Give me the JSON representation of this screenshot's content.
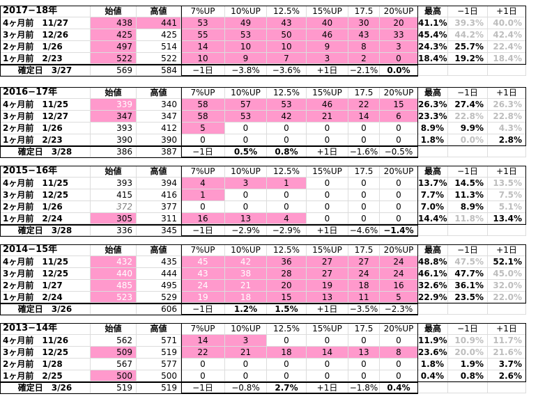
{
  "columns": [
    "始値",
    "高値",
    "7%UP",
    "10%UP",
    "12.5%",
    "15%UP",
    "17.5",
    "20%UP",
    "最高",
    "−1日",
    "+1日"
  ],
  "colors": {
    "highlight": "#ff99cc",
    "muted_text": "#bdbdbd",
    "grid": "#dcdcdc"
  },
  "sections": [
    {
      "title": "2017−18年",
      "rows": [
        {
          "label": "4ヶ月前　11/27",
          "cells": [
            "438",
            "441",
            "53",
            "49",
            "43",
            "40",
            "30",
            "20",
            "41.1%",
            "39.3%",
            "40.0%"
          ]
        },
        {
          "label": "3ヶ月前　12/26",
          "cells": [
            "425",
            "425",
            "55",
            "53",
            "50",
            "46",
            "43",
            "33",
            "45.4%",
            "44.2%",
            "42.4%"
          ]
        },
        {
          "label": "2ヶ月前　1/26",
          "cells": [
            "497",
            "514",
            "14",
            "10",
            "10",
            "9",
            "8",
            "3",
            "24.3%",
            "25.7%",
            "22.4%"
          ]
        },
        {
          "label": "1ヶ月前　2/23",
          "cells": [
            "522",
            "522",
            "10",
            "9",
            "7",
            "3",
            "2",
            "0",
            "18.4%",
            "19.2%",
            "18.4%"
          ]
        },
        {
          "label": "確定日　3/27",
          "cells": [
            "569",
            "584",
            "−1日",
            "−3.8%",
            "−3.6%",
            "+1日",
            "−2.1%",
            "0.0%",
            "",
            "",
            ""
          ]
        }
      ]
    },
    {
      "title": "2016−17年",
      "rows": [
        {
          "label": "4ヶ月前　11/25",
          "cells": [
            "339",
            "340",
            "58",
            "57",
            "53",
            "46",
            "22",
            "15",
            "26.3%",
            "27.4%",
            "26.3%"
          ]
        },
        {
          "label": "3ヶ月前　12/27",
          "cells": [
            "347",
            "347",
            "58",
            "53",
            "42",
            "21",
            "14",
            "6",
            "23.3%",
            "22.8%",
            "22.8%"
          ]
        },
        {
          "label": "2ヶ月前　1/26",
          "cells": [
            "393",
            "412",
            "5",
            "0",
            "0",
            "0",
            "0",
            "0",
            "8.9%",
            "9.9%",
            "4.3%"
          ]
        },
        {
          "label": "1ヶ月前　2/23",
          "cells": [
            "390",
            "390",
            "0",
            "0",
            "0",
            "0",
            "0",
            "0",
            "1.8%",
            "0.0%",
            "2.8%"
          ]
        },
        {
          "label": "確定日　3/28",
          "cells": [
            "386",
            "387",
            "−1日",
            "0.5%",
            "0.8%",
            "+1日",
            "−1.6%",
            "−0.5%",
            "",
            "",
            ""
          ]
        }
      ]
    },
    {
      "title": "2015−16年",
      "rows": [
        {
          "label": "4ヶ月前　11/25",
          "cells": [
            "393",
            "394",
            "4",
            "3",
            "1",
            "0",
            "0",
            "0",
            "13.7%",
            "14.5%",
            "13.5%"
          ]
        },
        {
          "label": "3ヶ月前　12/25",
          "cells": [
            "415",
            "416",
            "1",
            "0",
            "0",
            "0",
            "0",
            "0",
            "7.7%",
            "11.3%",
            "7.5%"
          ]
        },
        {
          "label": "2ヶ月前　1/26",
          "cells": [
            "372",
            "377",
            "0",
            "0",
            "0",
            "0",
            "0",
            "0",
            "7.0%",
            "8.9%",
            "5.1%"
          ]
        },
        {
          "label": "1ヶ月前　2/24",
          "cells": [
            "305",
            "311",
            "16",
            "13",
            "4",
            "0",
            "0",
            "0",
            "14.4%",
            "11.8%",
            "13.4%"
          ]
        },
        {
          "label": "確定日　3/28",
          "cells": [
            "336",
            "345",
            "−1日",
            "−2.9%",
            "−2.9%",
            "+1日",
            "−4.6%",
            "−1.4%",
            "",
            "",
            ""
          ]
        }
      ]
    },
    {
      "title": "2014−15年",
      "rows": [
        {
          "label": "4ヶ月前　11/25",
          "cells": [
            "432",
            "435",
            "45",
            "42",
            "36",
            "27",
            "27",
            "24",
            "48.8%",
            "47.5%",
            "52.1%"
          ]
        },
        {
          "label": "3ヶ月前　12/25",
          "cells": [
            "440",
            "444",
            "43",
            "38",
            "28",
            "27",
            "24",
            "24",
            "46.1%",
            "47.7%",
            "45.0%"
          ]
        },
        {
          "label": "2ヶ月前　1/27",
          "cells": [
            "485",
            "495",
            "24",
            "21",
            "20",
            "19",
            "18",
            "16",
            "32.6%",
            "36.1%",
            "32.0%"
          ]
        },
        {
          "label": "1ヶ月前　2/24",
          "cells": [
            "523",
            "529",
            "19",
            "18",
            "15",
            "13",
            "11",
            "5",
            "22.9%",
            "23.5%",
            "22.0%"
          ]
        },
        {
          "label": "確定日　3/26",
          "cells": [
            "605",
            "606",
            "−1日",
            "1.2%",
            "1.5%",
            "+1日",
            "−3.5%",
            "−2.3%",
            "",
            "",
            ""
          ]
        }
      ]
    },
    {
      "title": "2013−14年",
      "rows": [
        {
          "label": "4ヶ月前　11/26",
          "cells": [
            "562",
            "571",
            "14",
            "3",
            "0",
            "0",
            "0",
            "0",
            "11.9%",
            "10.9%",
            "11.7%"
          ]
        },
        {
          "label": "3ヶ月前　12/25",
          "cells": [
            "509",
            "519",
            "22",
            "21",
            "18",
            "14",
            "13",
            "8",
            "23.6%",
            "20.0%",
            "21.6%"
          ]
        },
        {
          "label": "2ヶ月前　1/28",
          "cells": [
            "567",
            "577",
            "0",
            "0",
            "0",
            "0",
            "0",
            "0",
            "1.8%",
            "1.9%",
            "3.7%"
          ]
        },
        {
          "label": "1ヶ月前　2/25",
          "cells": [
            "500",
            "500",
            "0",
            "0",
            "0",
            "0",
            "0",
            "0",
            "0.4%",
            "0.8%",
            "2.6%"
          ]
        },
        {
          "label": "確定日　3/26",
          "cells": [
            "519",
            "519",
            "−1日",
            "−0.8%",
            "2.7%",
            "+1日",
            "−1.8%",
            "0.4%",
            "",
            "",
            ""
          ]
        }
      ]
    }
  ]
}
